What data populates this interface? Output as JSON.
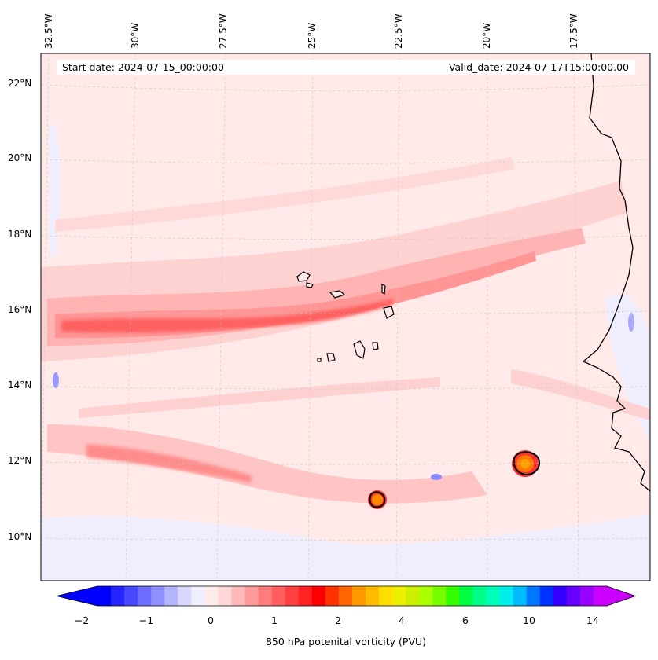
{
  "map": {
    "start_date": "Start date: 2024-07-15_00:00:00",
    "valid_date": "Valid_date: 2024-07-17T15:00:00.00",
    "longitude_labels": [
      "32.5°W",
      "30°W",
      "27.5°W",
      "25°W",
      "22.5°W",
      "20°W",
      "17.5°W"
    ],
    "latitude_labels": [
      "22°N",
      "20°N",
      "18°N",
      "16°N",
      "14°N",
      "12°N",
      "10°N"
    ]
  },
  "colorbar": {
    "label": "850 hPa potenital vorticity (PVU)",
    "tick_labels": [
      "−2",
      "−1",
      "0",
      "1",
      "2",
      "4",
      "6",
      "10",
      "14"
    ],
    "colors": [
      "#0000ff",
      "#2424ff",
      "#4848ff",
      "#6c6cff",
      "#9090ff",
      "#b4b4ff",
      "#d8d8ff",
      "#efefff",
      "#ffeaea",
      "#ffd6d6",
      "#ffb8b8",
      "#ff9a9a",
      "#ff7c7c",
      "#ff5e5e",
      "#ff4040",
      "#ff2222",
      "#ff0000",
      "#ff3300",
      "#ff6600",
      "#ff9900",
      "#ffbb00",
      "#ffdd00",
      "#eeee00",
      "#ccee00",
      "#aaff00",
      "#77ff00",
      "#33ff00",
      "#00ff44",
      "#00ff88",
      "#00ffbb",
      "#00eeee",
      "#00bbff",
      "#0077ff",
      "#0033ff",
      "#3300ff",
      "#6600ff",
      "#9900ff",
      "#cc00ff"
    ]
  }
}
